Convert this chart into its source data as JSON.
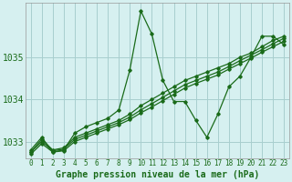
{
  "title": "Graphe pression niveau de la mer (hPa)",
  "background_color": "#d6f0f0",
  "grid_color": "#a8cece",
  "line_color": "#1a6b1a",
  "xlim": [
    -0.5,
    23.5
  ],
  "ylim": [
    1032.6,
    1036.3
  ],
  "yticks": [
    1033,
    1034,
    1035
  ],
  "xticks": [
    0,
    1,
    2,
    3,
    4,
    5,
    6,
    7,
    8,
    9,
    10,
    11,
    12,
    13,
    14,
    15,
    16,
    17,
    18,
    19,
    20,
    21,
    22,
    23
  ],
  "series": [
    [
      1032.8,
      1033.1,
      1032.75,
      1032.8,
      1033.2,
      1033.35,
      1033.45,
      1033.55,
      1033.75,
      1034.7,
      1036.1,
      1035.55,
      1034.45,
      1033.95,
      1033.95,
      1033.5,
      1033.1,
      1033.65,
      1034.3,
      1034.55,
      1035.0,
      1035.5,
      1035.5,
      1035.3
    ],
    [
      1032.75,
      1033.05,
      1032.8,
      1032.85,
      1033.1,
      1033.2,
      1033.3,
      1033.4,
      1033.5,
      1033.65,
      1033.85,
      1034.0,
      1034.15,
      1034.3,
      1034.45,
      1034.55,
      1034.65,
      1034.75,
      1034.85,
      1035.0,
      1035.1,
      1035.25,
      1035.4,
      1035.5
    ],
    [
      1032.75,
      1033.0,
      1032.78,
      1032.82,
      1033.05,
      1033.15,
      1033.25,
      1033.35,
      1033.45,
      1033.58,
      1033.75,
      1033.9,
      1034.05,
      1034.2,
      1034.35,
      1034.45,
      1034.55,
      1034.65,
      1034.78,
      1034.92,
      1035.05,
      1035.18,
      1035.32,
      1035.45
    ],
    [
      1032.7,
      1032.95,
      1032.75,
      1032.78,
      1033.0,
      1033.1,
      1033.2,
      1033.3,
      1033.4,
      1033.52,
      1033.68,
      1033.82,
      1033.97,
      1034.12,
      1034.27,
      1034.38,
      1034.48,
      1034.58,
      1034.72,
      1034.85,
      1034.98,
      1035.12,
      1035.25,
      1035.38
    ]
  ],
  "xlabel_fontsize": 7,
  "ytick_fontsize": 7,
  "xtick_fontsize": 5.5
}
